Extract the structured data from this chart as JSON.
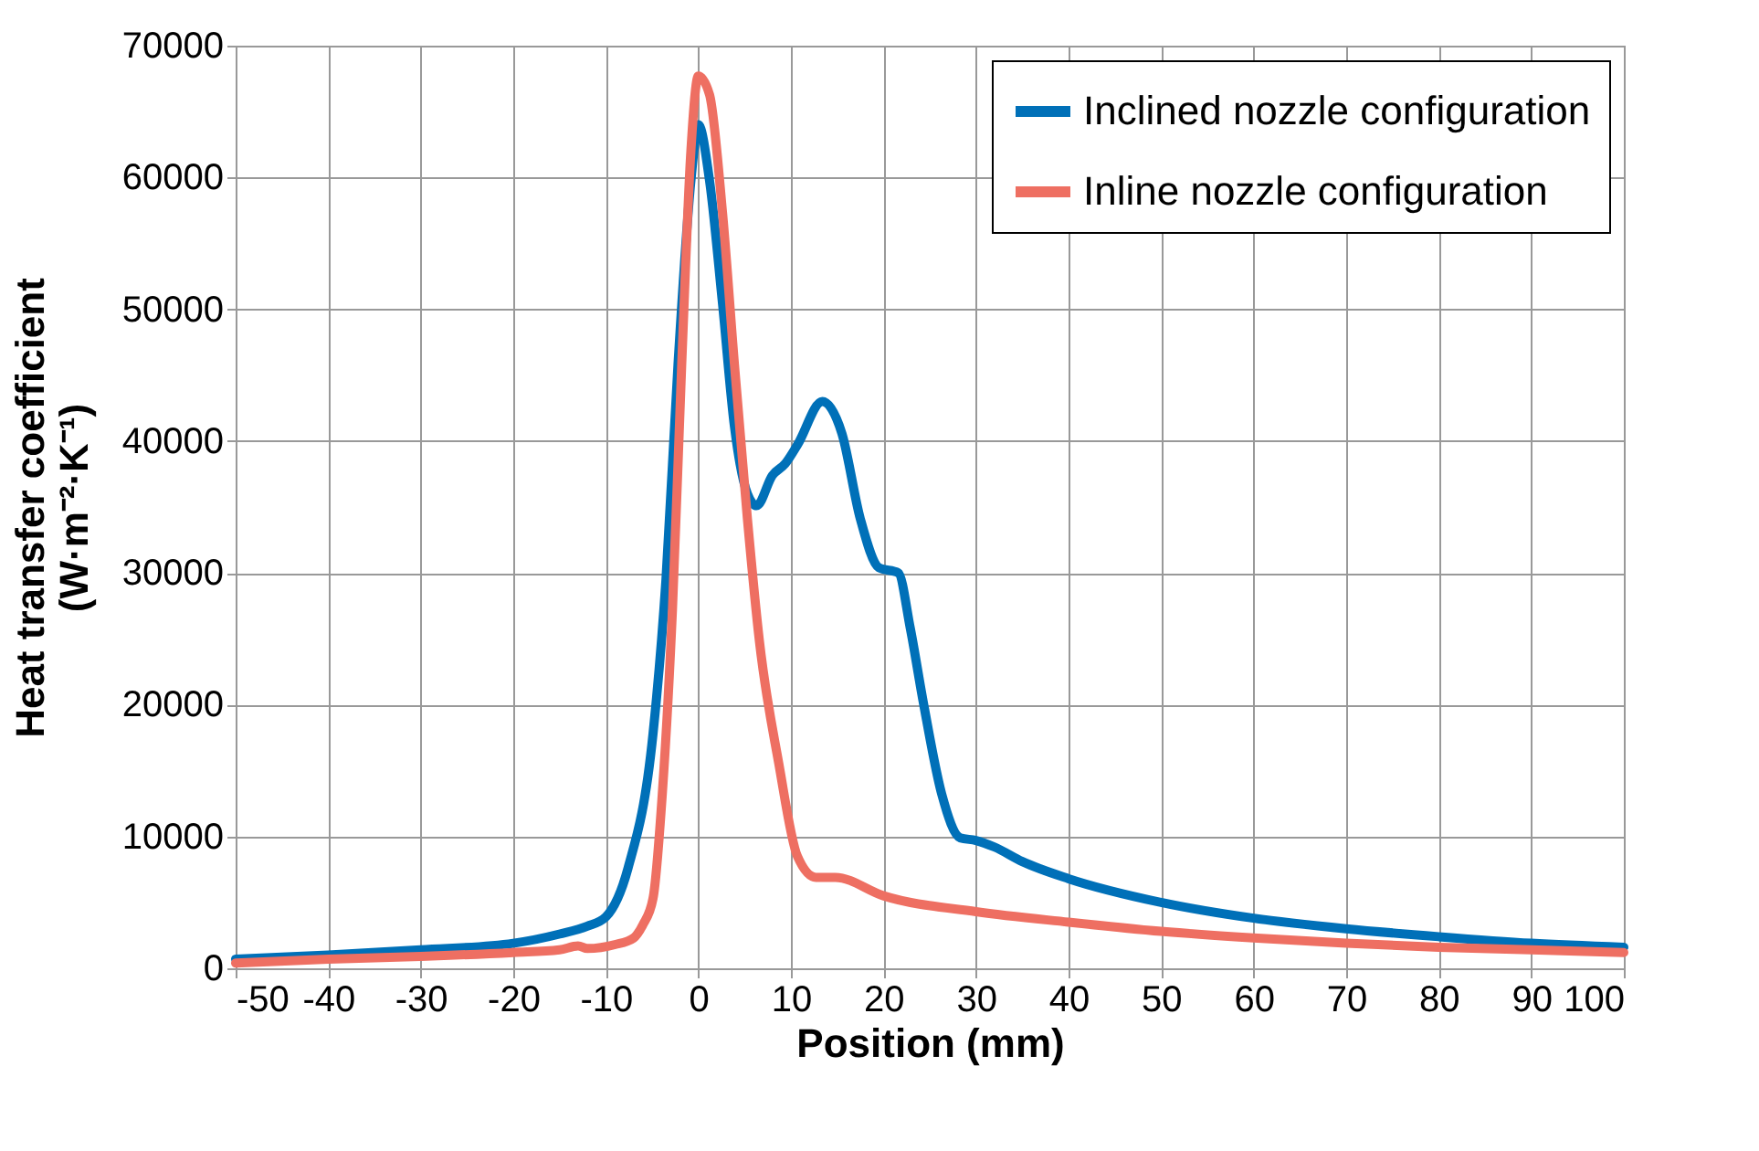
{
  "chart_data": {
    "type": "line",
    "xlabel": "Position (mm)",
    "ylabel": "Heat transfer coefficient\n(W·m⁻²·K⁻¹)",
    "xlim": [
      -50,
      100
    ],
    "xticks": [
      -50,
      -40,
      -30,
      -20,
      -10,
      0,
      10,
      20,
      30,
      40,
      50,
      60,
      70,
      80,
      90,
      100
    ],
    "ylim": [
      0,
      70000
    ],
    "yticks": [
      0,
      10000,
      20000,
      30000,
      40000,
      50000,
      60000,
      70000
    ],
    "grid": true,
    "legend": "top right",
    "line_style": "solid",
    "marker": "none",
    "series": [
      {
        "name": "Inclined nozzle configuration",
        "color": "#0070b8",
        "x": [
          -50,
          -40,
          -30,
          -20,
          -15,
          -12,
          -10,
          -7.6,
          -4.9,
          -3.5,
          -2.2,
          -0.8,
          0,
          1.2,
          2.6,
          3.9,
          5.3,
          6.3,
          8,
          9.4,
          10.7,
          13.4,
          15.5,
          17.5,
          19.5,
          21.6,
          22.9,
          24.3,
          26.3,
          28.3,
          30,
          32,
          35,
          40,
          50,
          60,
          70,
          80,
          90,
          100
        ],
        "values": [
          700,
          1000,
          1400,
          1900,
          2600,
          3200,
          3900,
          7600,
          17800,
          29500,
          45800,
          59800,
          64000,
          59800,
          50500,
          41100,
          36000,
          35100,
          37400,
          38300,
          39700,
          43000,
          40600,
          34100,
          30400,
          30000,
          25800,
          20200,
          13200,
          9900,
          9700,
          9200,
          8100,
          6800,
          5000,
          3800,
          3000,
          2400,
          1900,
          1600
        ]
      },
      {
        "name": "Inline nozzle configuration",
        "color": "#ee6f62",
        "x": [
          -50,
          -40,
          -30,
          -20,
          -15,
          -13,
          -12,
          -9,
          -7,
          -6,
          -4.9,
          -3.9,
          -2.8,
          -1.8,
          -0.8,
          0,
          1.2,
          2.6,
          3.9,
          5.3,
          6.6,
          8.7,
          10.7,
          12.7,
          14.8,
          20,
          30,
          40,
          50,
          60,
          70,
          80,
          90,
          100
        ],
        "values": [
          400,
          700,
          900,
          1200,
          1400,
          1700,
          1500,
          1800,
          2300,
          3300,
          5300,
          13200,
          27200,
          45800,
          62100,
          67700,
          66300,
          57400,
          45800,
          34100,
          24800,
          15500,
          8500,
          6900,
          6900,
          5500,
          4300,
          3500,
          2800,
          2300,
          1900,
          1600,
          1400,
          1200
        ]
      }
    ]
  }
}
